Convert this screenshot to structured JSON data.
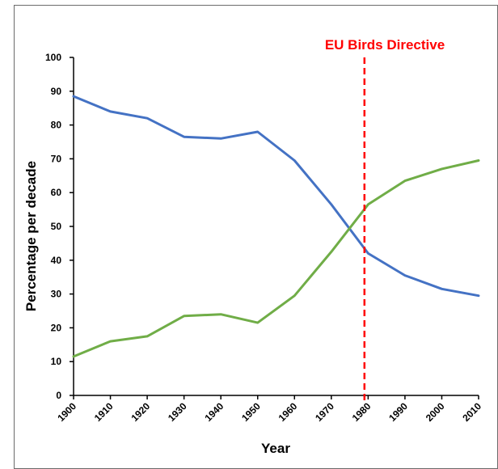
{
  "chart_data": {
    "type": "line",
    "title": "",
    "xlabel": "Year",
    "ylabel": "Percentage per decade",
    "x": [
      1900,
      1910,
      1920,
      1930,
      1940,
      1950,
      1960,
      1970,
      1980,
      1990,
      2000,
      2010
    ],
    "xlim": [
      1900,
      2010
    ],
    "ylim": [
      0,
      100
    ],
    "yticks": [
      0,
      10,
      20,
      30,
      40,
      50,
      60,
      70,
      80,
      90,
      100
    ],
    "grid": false,
    "legend": "none",
    "series": [
      {
        "color": "#4472c4",
        "values": [
          88.5,
          84,
          82,
          76.5,
          76,
          78,
          69.5,
          56.5,
          42,
          35.5,
          31.5,
          29.5
        ]
      },
      {
        "color": "#70ad47",
        "values": [
          11.5,
          16,
          17.5,
          23.5,
          24,
          21.5,
          29.5,
          42.5,
          56.5,
          63.5,
          67,
          69.5
        ]
      }
    ],
    "annotations": [
      {
        "text": "EU Birds Directive",
        "x": 1979,
        "color": "#ff0000",
        "style": "dashed-vertical-line"
      }
    ]
  }
}
